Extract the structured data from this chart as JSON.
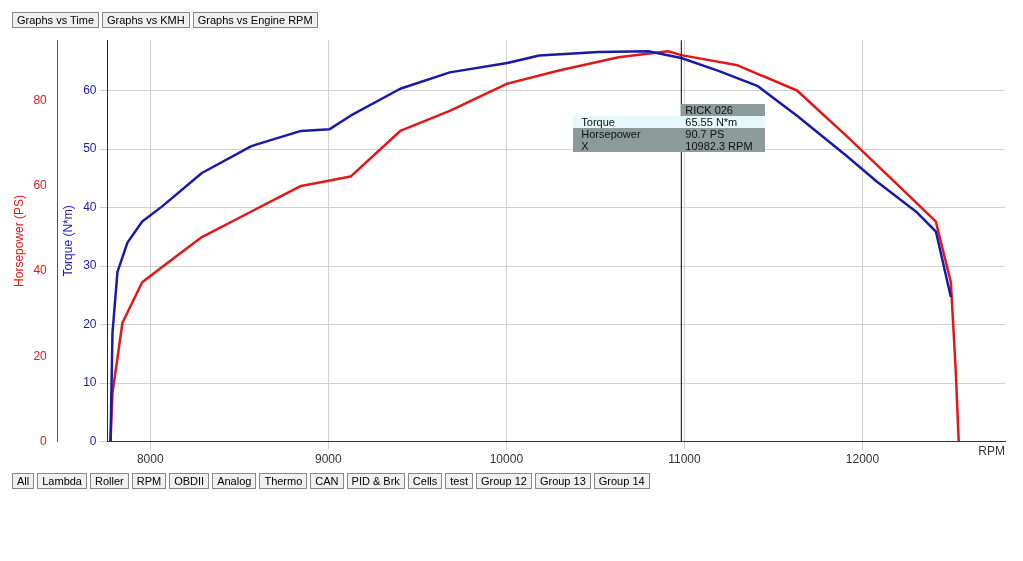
{
  "chart_data": {
    "type": "line",
    "xlabel": "RPM",
    "ylabel": "Torque (N*m)",
    "y2label": "Horsepower (PS)",
    "xlim": [
      7760,
      12800
    ],
    "xticks": [
      8000,
      9000,
      10000,
      11000,
      12000
    ],
    "ylim": [
      0,
      68.6
    ],
    "yticks": [
      0,
      10,
      20,
      30,
      40,
      50,
      60
    ],
    "y2lim": [
      0,
      94.2
    ],
    "y2ticks": [
      0,
      20,
      40,
      60,
      80
    ],
    "grid": true,
    "legend": false,
    "marker": "none",
    "line_style": "solid",
    "series": [
      {
        "color": "#1a1aa8",
        "x": [
          7777,
          7788,
          7816,
          7872,
          7955,
          8067,
          8290,
          8568,
          8847,
          9008,
          9125,
          9404,
          9682,
          10005,
          10184,
          10518,
          10797,
          10982.3,
          11187,
          11409,
          11632,
          11911,
          12078,
          12301,
          12412,
          12496
        ],
        "values": [
          0,
          18.6,
          29,
          34,
          37.6,
          40.2,
          45.9,
          50.5,
          53.1,
          53.4,
          55.7,
          60.3,
          63.1,
          64.7,
          66,
          66.6,
          66.7,
          65.55,
          63.4,
          60.8,
          55.7,
          48.8,
          44.5,
          39.3,
          35.9,
          24.7
        ]
      },
      {
        "color": "#e01818",
        "axis": "y2",
        "x": [
          7777,
          7788,
          7844,
          7955,
          8067,
          8290,
          8568,
          8847,
          9125,
          9404,
          9682,
          10005,
          10295,
          10630,
          10908,
          10982.3,
          11298,
          11632,
          11911,
          12189,
          12412,
          12496,
          12524,
          12540
        ],
        "values": [
          0,
          11.4,
          27.9,
          37.4,
          41,
          48,
          54,
          60,
          62.2,
          72.9,
          77.6,
          84,
          87.1,
          90.2,
          91.6,
          90.7,
          88.3,
          82.4,
          71.7,
          60.6,
          51.6,
          37.4,
          16.1,
          0
        ]
      }
    ],
    "ref_lines": [
      {
        "axis": "x",
        "value": 10982.3,
        "color": "#000000"
      }
    ],
    "annotations": [
      "Graphs vs Time",
      "Graphs vs KMH",
      "Graphs vs Engine RPM",
      "All",
      "Lambda",
      "Roller",
      "RPM",
      "OBDII",
      "Analog",
      "Thermo",
      "CAN",
      "PID & Brk",
      "Cells",
      "test",
      "Group 12",
      "Group 13",
      "Group 14",
      "RICK    026",
      "Torque",
      "65.55 N*m",
      "Horsepower",
      "90.7 PS",
      "X",
      "10982.3 RPM"
    ]
  }
}
